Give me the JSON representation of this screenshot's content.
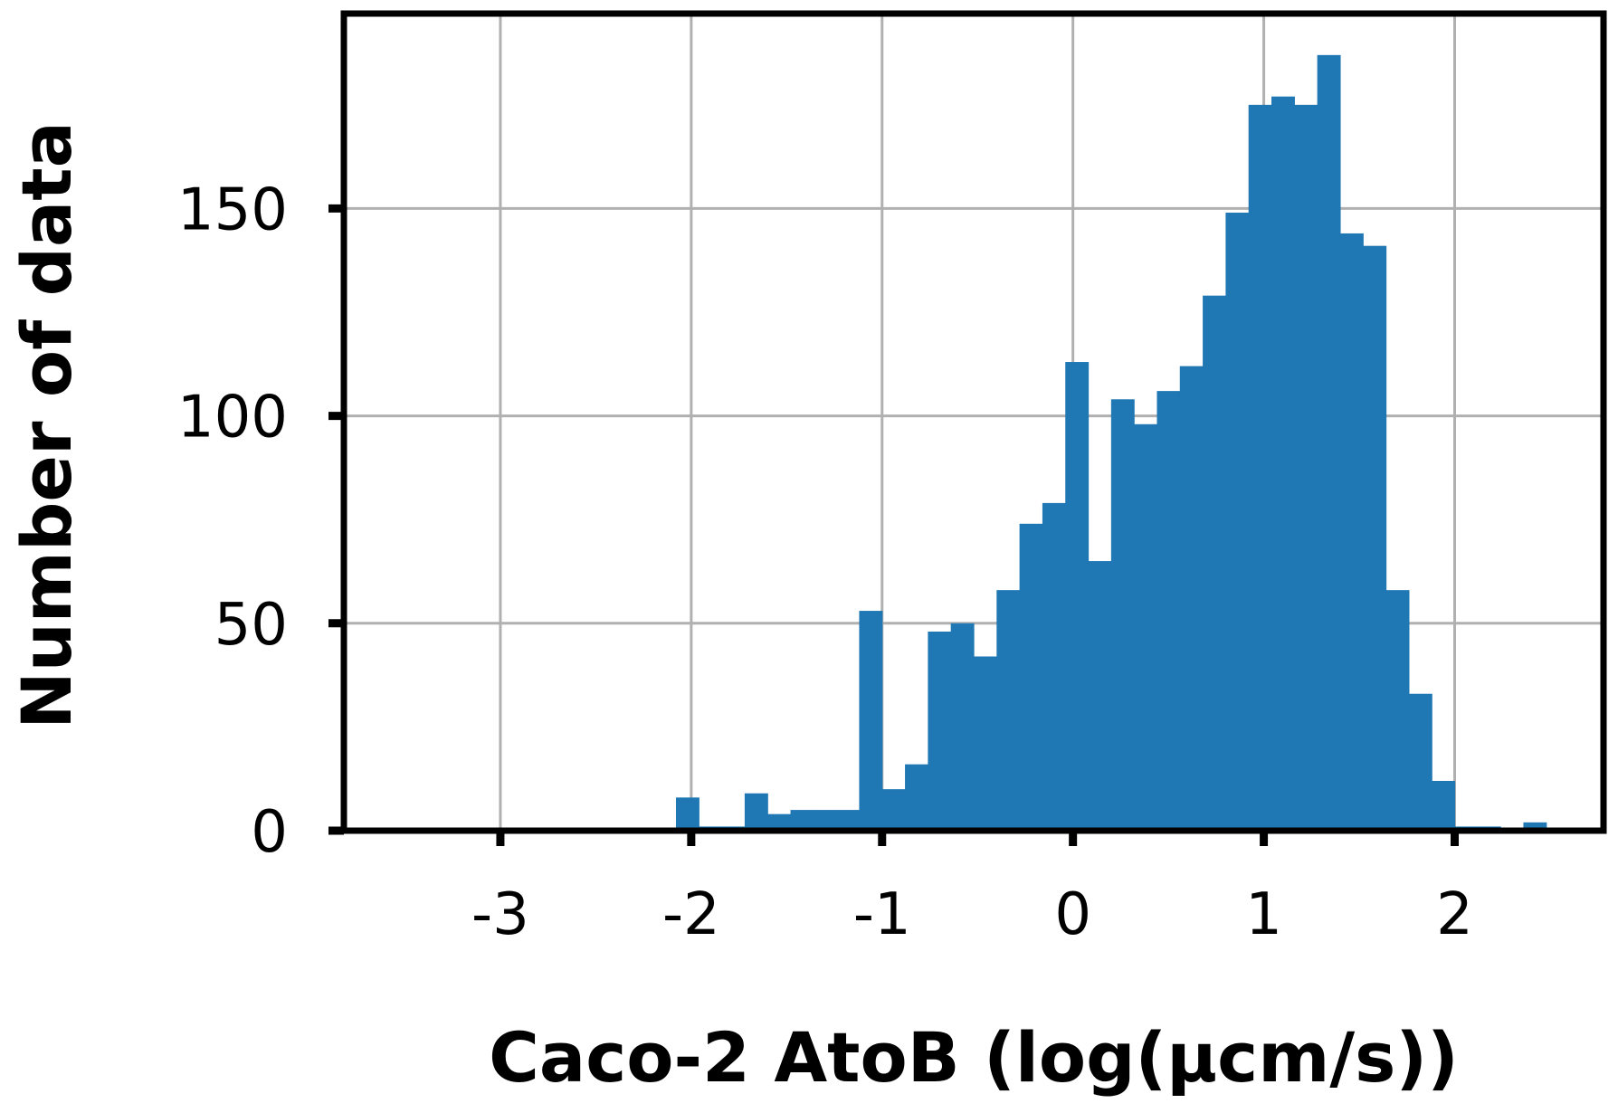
{
  "chart_data": {
    "type": "bar",
    "subtype": "histogram",
    "title": "",
    "xlabel": "Caco-2 AtoB (log(μcm/s))",
    "ylabel": "Number of data",
    "xlim": [
      -3.82,
      2.78
    ],
    "ylim": [
      0,
      197
    ],
    "xticks": [
      -3,
      -2,
      -1,
      0,
      1,
      2
    ],
    "xtick_labels": [
      "-3",
      "-2",
      "-1",
      "0",
      "1",
      "2"
    ],
    "yticks": [
      0,
      50,
      100,
      150
    ],
    "ytick_labels": [
      "0",
      "50",
      "100",
      "150"
    ],
    "grid": true,
    "bin_width": 0.12,
    "bar_color": "#1f77b4",
    "grid_color": "#b0b0b0",
    "bins": [
      {
        "x0": -3.52,
        "x1": -3.4,
        "count": 0.5
      },
      {
        "x0": -2.8,
        "x1": -2.68,
        "count": 0.5
      },
      {
        "x0": -2.08,
        "x1": -1.96,
        "count": 8
      },
      {
        "x0": -1.96,
        "x1": -1.84,
        "count": 1
      },
      {
        "x0": -1.84,
        "x1": -1.72,
        "count": 1
      },
      {
        "x0": -1.72,
        "x1": -1.6,
        "count": 9
      },
      {
        "x0": -1.6,
        "x1": -1.48,
        "count": 4
      },
      {
        "x0": -1.48,
        "x1": -1.36,
        "count": 5
      },
      {
        "x0": -1.36,
        "x1": -1.24,
        "count": 5
      },
      {
        "x0": -1.24,
        "x1": -1.12,
        "count": 5
      },
      {
        "x0": -1.12,
        "x1": -1.0,
        "count": 53
      },
      {
        "x0": -1.0,
        "x1": -0.88,
        "count": 10
      },
      {
        "x0": -0.88,
        "x1": -0.76,
        "count": 16
      },
      {
        "x0": -0.76,
        "x1": -0.64,
        "count": 48
      },
      {
        "x0": -0.64,
        "x1": -0.52,
        "count": 50
      },
      {
        "x0": -0.52,
        "x1": -0.4,
        "count": 42
      },
      {
        "x0": -0.4,
        "x1": -0.28,
        "count": 58
      },
      {
        "x0": -0.28,
        "x1": -0.16,
        "count": 74
      },
      {
        "x0": -0.16,
        "x1": -0.04,
        "count": 79
      },
      {
        "x0": -0.04,
        "x1": 0.08,
        "count": 113
      },
      {
        "x0": 0.08,
        "x1": 0.2,
        "count": 65
      },
      {
        "x0": 0.2,
        "x1": 0.32,
        "count": 104
      },
      {
        "x0": 0.32,
        "x1": 0.44,
        "count": 98
      },
      {
        "x0": 0.44,
        "x1": 0.56,
        "count": 106
      },
      {
        "x0": 0.56,
        "x1": 0.68,
        "count": 112
      },
      {
        "x0": 0.68,
        "x1": 0.8,
        "count": 129
      },
      {
        "x0": 0.8,
        "x1": 0.92,
        "count": 149
      },
      {
        "x0": 0.92,
        "x1": 1.04,
        "count": 175
      },
      {
        "x0": 1.04,
        "x1": 1.16,
        "count": 177
      },
      {
        "x0": 1.16,
        "x1": 1.28,
        "count": 175
      },
      {
        "x0": 1.28,
        "x1": 1.4,
        "count": 187
      },
      {
        "x0": 1.4,
        "x1": 1.52,
        "count": 144
      },
      {
        "x0": 1.52,
        "x1": 1.64,
        "count": 141
      },
      {
        "x0": 1.64,
        "x1": 1.76,
        "count": 58
      },
      {
        "x0": 1.76,
        "x1": 1.88,
        "count": 33
      },
      {
        "x0": 1.88,
        "x1": 2.0,
        "count": 12
      },
      {
        "x0": 2.0,
        "x1": 2.12,
        "count": 1
      },
      {
        "x0": 2.12,
        "x1": 2.24,
        "count": 1
      },
      {
        "x0": 2.36,
        "x1": 2.48,
        "count": 2
      }
    ]
  }
}
